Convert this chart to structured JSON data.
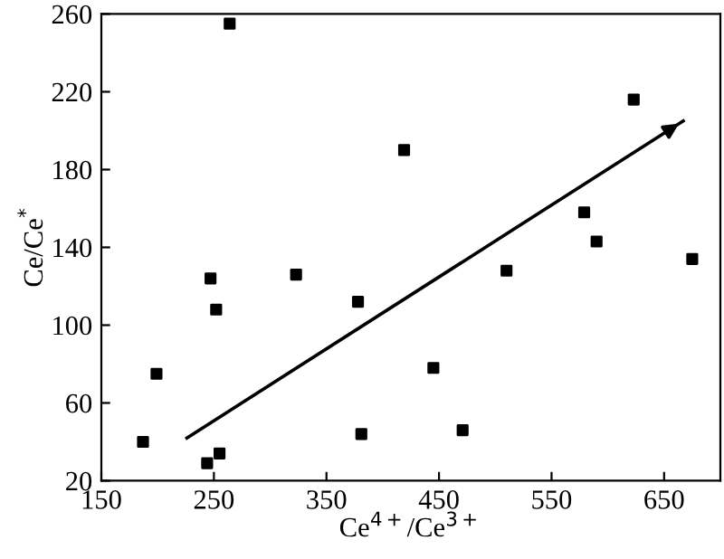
{
  "chart_data": {
    "type": "scatter",
    "xlabel": "Ce$^{4+}$/Ce$^{3+}$",
    "ylabel": "Ce/Ce$^{*}$",
    "xlim": [
      150,
      700
    ],
    "xticks": [
      150,
      250,
      350,
      450,
      550,
      650
    ],
    "ylim": [
      20,
      260
    ],
    "yticks": [
      20,
      60,
      100,
      140,
      180,
      220,
      260
    ],
    "grid": false,
    "legend": false,
    "series": [
      {
        "color": "#000000",
        "marker": "square",
        "x": [
          187,
          199,
          247,
          252,
          244,
          255,
          264,
          323,
          378,
          381,
          419,
          445,
          471,
          510,
          579,
          590,
          623,
          675
        ],
        "values": [
          40,
          75,
          124,
          108,
          29,
          34,
          255,
          126,
          112,
          44,
          190,
          78,
          46,
          128,
          158,
          143,
          216,
          134
        ]
      },
      {
        "type": "line",
        "color": "#000000",
        "x": [
          226,
          667
        ],
        "values": [
          42,
          205
        ],
        "line_style": "solid"
      }
    ]
  }
}
